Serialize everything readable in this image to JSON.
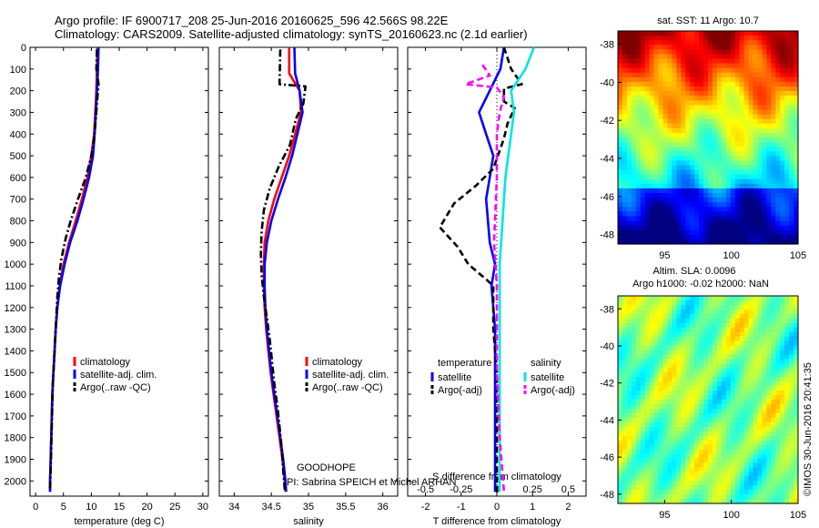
{
  "title": {
    "line1": "Argo profile: IF 6900717_208 25-Jun-2016 20160625_596 42.566S 98.22E",
    "line2": "Climatology: CARS2009. Satellite-adjusted climatology: synTS_20160623.nc (2.1d earlier)"
  },
  "footer": {
    "program": "GOODHOPE",
    "pi": "PI: Sabrina SPEICH et Michel ARHAN",
    "stamp": "©IMOS 30-Jun-2016 20:41:35"
  },
  "colors": {
    "climatology": "#ff0000",
    "satellite": "#0000ff",
    "argo": "#000000",
    "satellite_salinity": "#00e6e6",
    "argo_salinity": "#ff00ff"
  },
  "chart_data": [
    {
      "id": "temperature",
      "type": "line",
      "xlabel": "temperature (deg C)",
      "ylabel": "",
      "xlim": [
        -1,
        31
      ],
      "ylim": [
        2070,
        0
      ],
      "xticks": [
        "0",
        "5",
        "10",
        "15",
        "20",
        "25",
        "30"
      ],
      "yticks": [
        "0",
        "100",
        "200",
        "300",
        "400",
        "500",
        "600",
        "700",
        "800",
        "900",
        "1000",
        "1100",
        "1200",
        "1300",
        "1400",
        "1500",
        "1600",
        "1700",
        "1800",
        "1900",
        "2000"
      ],
      "legend": [
        "climatology",
        "satellite-adj. clim.",
        "Argo(..raw -QC)"
      ],
      "legend_position": "lower-right",
      "series": [
        {
          "name": "climatology",
          "style": "solid",
          "color": "#ff0000",
          "points": [
            [
              11.1,
              0
            ],
            [
              11.0,
              100
            ],
            [
              10.9,
              200
            ],
            [
              10.7,
              300
            ],
            [
              10.5,
              400
            ],
            [
              10.0,
              500
            ],
            [
              9.3,
              600
            ],
            [
              8.3,
              700
            ],
            [
              7.2,
              800
            ],
            [
              6.0,
              900
            ],
            [
              5.0,
              1000
            ],
            [
              4.3,
              1100
            ],
            [
              3.9,
              1200
            ],
            [
              3.6,
              1300
            ],
            [
              3.4,
              1400
            ],
            [
              3.2,
              1500
            ],
            [
              3.0,
              1600
            ],
            [
              2.9,
              1700
            ],
            [
              2.8,
              1800
            ],
            [
              2.7,
              1900
            ],
            [
              2.6,
              2000
            ],
            [
              2.6,
              2050
            ]
          ]
        },
        {
          "name": "satellite-adj. clim.",
          "style": "solid",
          "color": "#0000ff",
          "points": [
            [
              11.3,
              0
            ],
            [
              11.2,
              100
            ],
            [
              11.0,
              200
            ],
            [
              10.8,
              300
            ],
            [
              10.6,
              400
            ],
            [
              10.3,
              500
            ],
            [
              9.6,
              600
            ],
            [
              8.6,
              700
            ],
            [
              7.5,
              800
            ],
            [
              6.2,
              900
            ],
            [
              5.2,
              1000
            ],
            [
              4.4,
              1100
            ],
            [
              3.9,
              1200
            ],
            [
              3.6,
              1300
            ],
            [
              3.4,
              1400
            ],
            [
              3.2,
              1500
            ],
            [
              3.0,
              1600
            ],
            [
              2.9,
              1700
            ],
            [
              2.8,
              1800
            ],
            [
              2.7,
              1900
            ],
            [
              2.6,
              2000
            ],
            [
              2.6,
              2050
            ]
          ]
        },
        {
          "name": "Argo(..raw -QC)",
          "style": "dashdot",
          "color": "#000000",
          "points": [
            [
              11.0,
              10
            ],
            [
              10.9,
              100
            ],
            [
              11.3,
              170
            ],
            [
              11.0,
              260
            ],
            [
              10.8,
              330
            ],
            [
              10.5,
              420
            ],
            [
              10.0,
              500
            ],
            [
              9.0,
              600
            ],
            [
              7.6,
              700
            ],
            [
              6.3,
              800
            ],
            [
              5.4,
              880
            ],
            [
              4.6,
              980
            ],
            [
              4.2,
              1060
            ],
            [
              3.9,
              1150
            ],
            [
              3.7,
              1250
            ],
            [
              3.5,
              1350
            ],
            [
              3.3,
              1450
            ],
            [
              3.1,
              1550
            ],
            [
              3.0,
              1650
            ],
            [
              2.9,
              1750
            ],
            [
              2.8,
              1850
            ],
            [
              2.7,
              1950
            ],
            [
              2.6,
              2040
            ]
          ]
        }
      ]
    },
    {
      "id": "salinity",
      "type": "line",
      "xlabel": "salinity",
      "ylabel": "",
      "xlim": [
        33.8,
        36.2
      ],
      "ylim": [
        2070,
        0
      ],
      "xticks": [
        "34",
        "34.5",
        "35",
        "35.5",
        "36"
      ],
      "legend": [
        "climatology",
        "satellite-adj. clim.",
        "Argo(..raw -QC)"
      ],
      "legend_position": "lower-right",
      "series": [
        {
          "name": "climatology",
          "style": "solid",
          "color": "#ff0000",
          "points": [
            [
              34.74,
              0
            ],
            [
              34.74,
              120
            ],
            [
              34.88,
              200
            ],
            [
              34.9,
              300
            ],
            [
              34.82,
              400
            ],
            [
              34.74,
              500
            ],
            [
              34.64,
              600
            ],
            [
              34.54,
              700
            ],
            [
              34.46,
              800
            ],
            [
              34.41,
              900
            ],
            [
              34.4,
              1000
            ],
            [
              34.4,
              1100
            ],
            [
              34.41,
              1200
            ],
            [
              34.43,
              1300
            ],
            [
              34.46,
              1400
            ],
            [
              34.49,
              1500
            ],
            [
              34.53,
              1600
            ],
            [
              34.57,
              1700
            ],
            [
              34.61,
              1800
            ],
            [
              34.65,
              1900
            ],
            [
              34.68,
              2000
            ],
            [
              34.69,
              2050
            ]
          ]
        },
        {
          "name": "satellite-adj. clim.",
          "style": "solid",
          "color": "#0000ff",
          "points": [
            [
              34.81,
              0
            ],
            [
              34.82,
              120
            ],
            [
              34.88,
              200
            ],
            [
              34.92,
              300
            ],
            [
              34.85,
              400
            ],
            [
              34.78,
              500
            ],
            [
              34.69,
              600
            ],
            [
              34.59,
              700
            ],
            [
              34.5,
              800
            ],
            [
              34.44,
              900
            ],
            [
              34.41,
              1000
            ],
            [
              34.41,
              1100
            ],
            [
              34.42,
              1200
            ],
            [
              34.44,
              1300
            ],
            [
              34.47,
              1400
            ],
            [
              34.5,
              1500
            ],
            [
              34.54,
              1600
            ],
            [
              34.58,
              1700
            ],
            [
              34.62,
              1800
            ],
            [
              34.66,
              1900
            ],
            [
              34.69,
              2000
            ],
            [
              34.7,
              2050
            ]
          ]
        },
        {
          "name": "Argo(..raw -QC)",
          "style": "dashdot",
          "color": "#000000",
          "points": [
            [
              34.62,
              10
            ],
            [
              34.61,
              170
            ],
            [
              34.96,
              180
            ],
            [
              34.93,
              260
            ],
            [
              34.83,
              330
            ],
            [
              34.75,
              450
            ],
            [
              34.6,
              550
            ],
            [
              34.48,
              650
            ],
            [
              34.4,
              750
            ],
            [
              34.37,
              850
            ],
            [
              34.36,
              950
            ],
            [
              34.37,
              1050
            ],
            [
              34.4,
              1150
            ],
            [
              34.44,
              1250
            ],
            [
              34.48,
              1350
            ],
            [
              34.51,
              1450
            ],
            [
              34.54,
              1550
            ],
            [
              34.58,
              1650
            ],
            [
              34.61,
              1750
            ],
            [
              34.64,
              1850
            ],
            [
              34.66,
              1950
            ],
            [
              34.68,
              2040
            ]
          ]
        }
      ]
    },
    {
      "id": "difference",
      "type": "line",
      "xlabel": "T difference from climatology",
      "ylabel": "",
      "title_bottom": "S difference from climatology",
      "xlim": [
        -2.5,
        2.5
      ],
      "ylim": [
        2070,
        0
      ],
      "xticks": [
        "-2",
        "-1",
        "0",
        "1",
        "2"
      ],
      "secondary_xticks": [
        "-0.5",
        "-0.25",
        "0",
        "0.25",
        "0.5"
      ],
      "secondary_xlim": [
        -0.625,
        0.625
      ],
      "legend_headers": [
        "temperature",
        "salinity"
      ],
      "legend": [
        "satellite",
        "Argo(-adj)",
        "satellite",
        "Argo(-adj)"
      ],
      "legend_position": "lower-right",
      "series": [
        {
          "name": "satellite",
          "quantity": "temperature",
          "style": "solid",
          "color": "#0000ff",
          "points": [
            [
              0.2,
              0
            ],
            [
              0.1,
              100
            ],
            [
              -0.2,
              200
            ],
            [
              -0.5,
              300
            ],
            [
              -0.3,
              400
            ],
            [
              -0.1,
              500
            ],
            [
              -0.2,
              600
            ],
            [
              -0.3,
              700
            ],
            [
              -0.25,
              800
            ],
            [
              -0.2,
              900
            ],
            [
              -0.05,
              1000
            ],
            [
              -0.15,
              1100
            ],
            [
              -0.1,
              1200
            ],
            [
              -0.05,
              1300
            ],
            [
              -0.05,
              1500
            ],
            [
              -0.05,
              1800
            ],
            [
              -0.05,
              2050
            ]
          ]
        },
        {
          "name": "Argo(-adj)",
          "quantity": "temperature",
          "style": "dashed",
          "color": "#000000",
          "points": [
            [
              0.2,
              0
            ],
            [
              0.4,
              100
            ],
            [
              0.7,
              170
            ],
            [
              0.2,
              190
            ],
            [
              0.2,
              250
            ],
            [
              0.5,
              280
            ],
            [
              0.3,
              350
            ],
            [
              0.2,
              420
            ],
            [
              -0.1,
              560
            ],
            [
              -0.6,
              640
            ],
            [
              -1.2,
              720
            ],
            [
              -1.6,
              830
            ],
            [
              -1.1,
              920
            ],
            [
              -0.8,
              1000
            ],
            [
              -0.3,
              1070
            ],
            [
              -0.1,
              1100
            ],
            [
              -0.1,
              1300
            ],
            [
              0.0,
              1500
            ],
            [
              0.0,
              2050
            ]
          ]
        },
        {
          "name": "satellite",
          "quantity": "salinity",
          "style": "solid",
          "color": "#00e6e6",
          "points": [
            [
              0.26,
              0
            ],
            [
              0.2,
              100
            ],
            [
              0.1,
              200
            ],
            [
              0.12,
              300
            ],
            [
              0.1,
              400
            ],
            [
              0.08,
              500
            ],
            [
              0.06,
              600
            ],
            [
              0.05,
              700
            ],
            [
              0.04,
              800
            ],
            [
              0.03,
              900
            ],
            [
              0.02,
              1000
            ],
            [
              0.02,
              1200
            ],
            [
              0.02,
              1500
            ],
            [
              0.02,
              1800
            ],
            [
              0.02,
              2050
            ]
          ]
        },
        {
          "name": "Argo(-adj)",
          "quantity": "salinity",
          "style": "dashed",
          "color": "#ff00ff",
          "points": [
            [
              -0.1,
              80
            ],
            [
              -0.05,
              130
            ],
            [
              -0.22,
              170
            ],
            [
              0.0,
              185
            ],
            [
              0.05,
              230
            ],
            [
              0.02,
              300
            ],
            [
              0.0,
              400
            ],
            [
              0.0,
              600
            ],
            [
              -0.02,
              900
            ],
            [
              0.0,
              1100
            ],
            [
              0.0,
              1500
            ],
            [
              0.02,
              1800
            ],
            [
              0.05,
              2050
            ]
          ]
        }
      ]
    },
    {
      "id": "sst_map",
      "type": "heatmap",
      "title": "sat. SST: 11 Argo: 10.7",
      "xticks": [
        "95",
        "100",
        "105"
      ],
      "yticks": [
        "-38",
        "-40",
        "-42",
        "-44",
        "-46",
        "-48"
      ],
      "xlim": [
        91.5,
        105
      ],
      "ylim": [
        -48.5,
        -37.3
      ],
      "colormap": "jet"
    },
    {
      "id": "sla_map",
      "type": "heatmap",
      "title": "Altim. SLA: 0.0096",
      "subtitle": "Argo h1000: -0.02 h2000: NaN",
      "xticks": [
        "95",
        "100",
        "105"
      ],
      "yticks": [
        "-38",
        "-40",
        "-42",
        "-44",
        "-46",
        "-48"
      ],
      "xlim": [
        91.5,
        105
      ],
      "ylim": [
        -48.5,
        -37.3
      ],
      "colormap": "jet"
    }
  ]
}
